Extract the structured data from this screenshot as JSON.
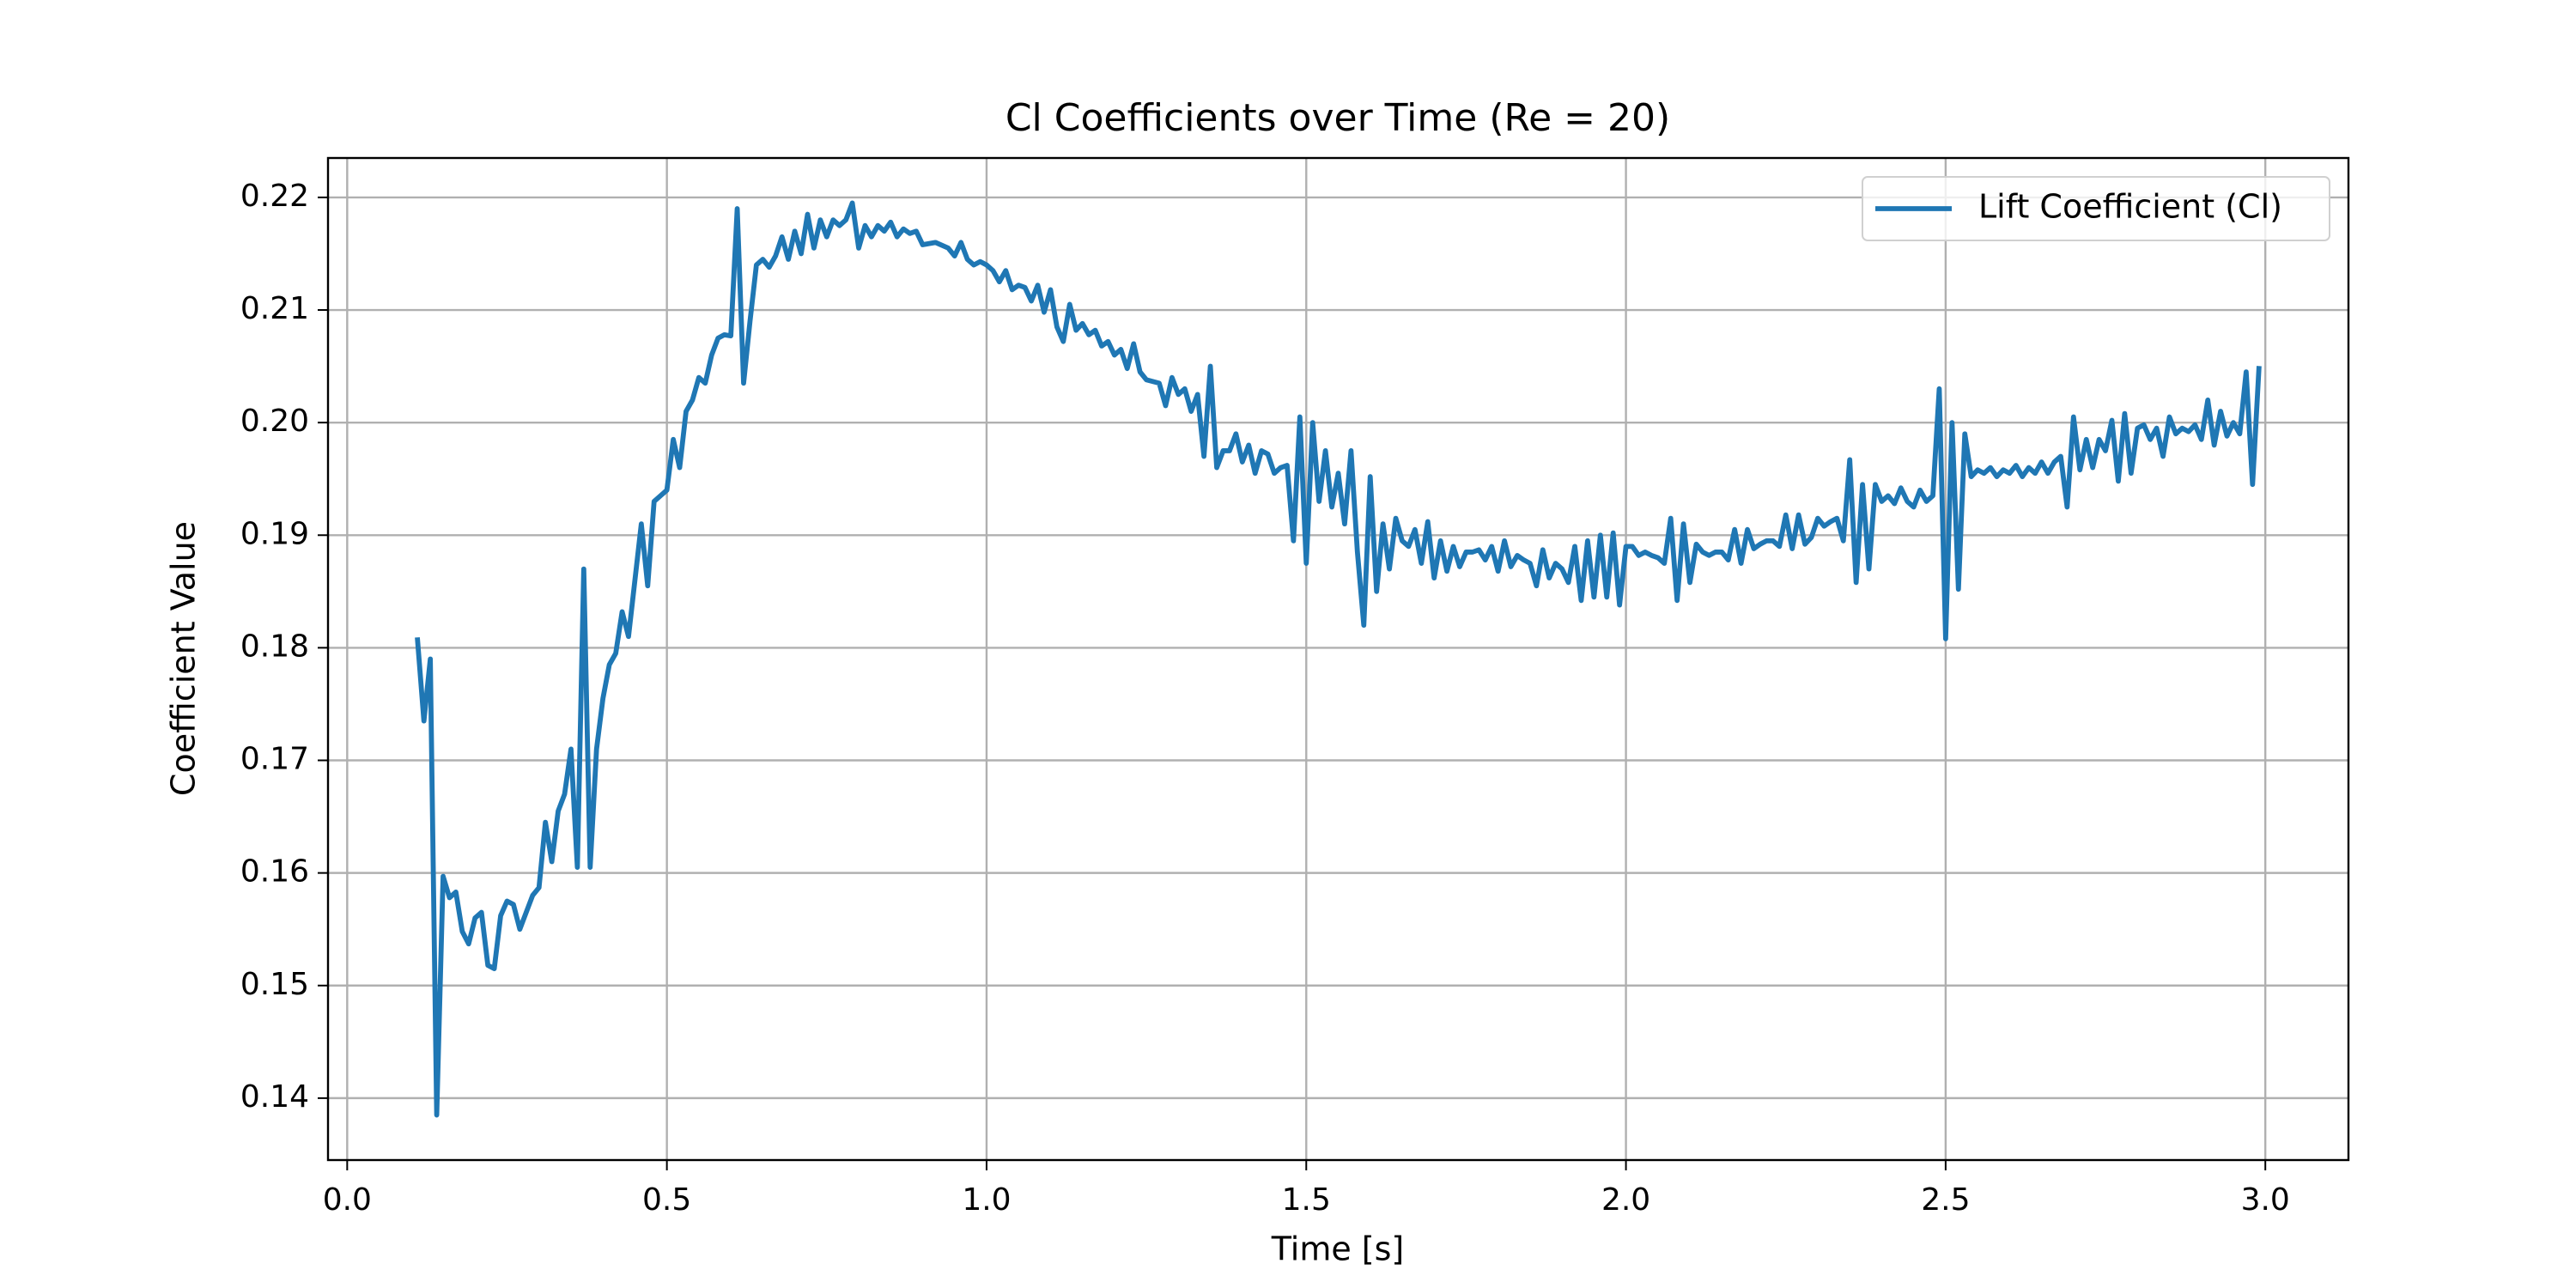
{
  "chart_data": {
    "type": "line",
    "title": "Cl Coefficients over Time (Re = 20)",
    "x_label": "Time [s]",
    "y_label": "Coefficient Value",
    "x": [
      0.11,
      0.12,
      0.13,
      0.14,
      0.15,
      0.16,
      0.17,
      0.18,
      0.19,
      0.2,
      0.21,
      0.22,
      0.23,
      0.24,
      0.25,
      0.26,
      0.27,
      0.28,
      0.29,
      0.3,
      0.31,
      0.32,
      0.33,
      0.34,
      0.35,
      0.36,
      0.37,
      0.38,
      0.39,
      0.4,
      0.41,
      0.42,
      0.43,
      0.44,
      0.45,
      0.46,
      0.47,
      0.48,
      0.49,
      0.5,
      0.51,
      0.52,
      0.53,
      0.54,
      0.55,
      0.56,
      0.57,
      0.58,
      0.59,
      0.6,
      0.61,
      0.62,
      0.63,
      0.64,
      0.65,
      0.66,
      0.67,
      0.68,
      0.69,
      0.7,
      0.71,
      0.72,
      0.73,
      0.74,
      0.75,
      0.76,
      0.77,
      0.78,
      0.79,
      0.8,
      0.81,
      0.82,
      0.83,
      0.84,
      0.85,
      0.86,
      0.87,
      0.88,
      0.89,
      0.9,
      0.92,
      0.94,
      0.95,
      0.96,
      0.97,
      0.98,
      0.99,
      1.0,
      1.01,
      1.02,
      1.03,
      1.04,
      1.05,
      1.06,
      1.07,
      1.08,
      1.09,
      1.1,
      1.11,
      1.12,
      1.13,
      1.14,
      1.15,
      1.16,
      1.17,
      1.18,
      1.19,
      1.2,
      1.21,
      1.22,
      1.23,
      1.24,
      1.25,
      1.27,
      1.28,
      1.29,
      1.3,
      1.31,
      1.32,
      1.33,
      1.34,
      1.35,
      1.36,
      1.37,
      1.38,
      1.39,
      1.4,
      1.41,
      1.42,
      1.43,
      1.44,
      1.45,
      1.46,
      1.47,
      1.48,
      1.49,
      1.5,
      1.51,
      1.52,
      1.53,
      1.54,
      1.55,
      1.56,
      1.57,
      1.58,
      1.59,
      1.6,
      1.61,
      1.62,
      1.63,
      1.64,
      1.65,
      1.66,
      1.67,
      1.68,
      1.69,
      1.7,
      1.71,
      1.72,
      1.73,
      1.74,
      1.75,
      1.76,
      1.77,
      1.78,
      1.79,
      1.8,
      1.81,
      1.82,
      1.83,
      1.84,
      1.85,
      1.86,
      1.87,
      1.88,
      1.89,
      1.9,
      1.91,
      1.92,
      1.93,
      1.94,
      1.95,
      1.96,
      1.97,
      1.98,
      1.99,
      2.0,
      2.01,
      2.02,
      2.03,
      2.04,
      2.05,
      2.06,
      2.07,
      2.08,
      2.09,
      2.1,
      2.11,
      2.12,
      2.13,
      2.14,
      2.15,
      2.16,
      2.17,
      2.18,
      2.19,
      2.2,
      2.21,
      2.22,
      2.23,
      2.24,
      2.25,
      2.26,
      2.27,
      2.28,
      2.29,
      2.3,
      2.31,
      2.32,
      2.33,
      2.34,
      2.35,
      2.36,
      2.37,
      2.38,
      2.39,
      2.4,
      2.41,
      2.42,
      2.43,
      2.44,
      2.45,
      2.46,
      2.47,
      2.48,
      2.49,
      2.5,
      2.51,
      2.52,
      2.53,
      2.54,
      2.55,
      2.56,
      2.57,
      2.58,
      2.59,
      2.6,
      2.61,
      2.62,
      2.63,
      2.64,
      2.65,
      2.66,
      2.67,
      2.68,
      2.69,
      2.7,
      2.71,
      2.72,
      2.73,
      2.74,
      2.75,
      2.76,
      2.77,
      2.78,
      2.79,
      2.8,
      2.81,
      2.82,
      2.83,
      2.84,
      2.85,
      2.86,
      2.87,
      2.88,
      2.89,
      2.9,
      2.91,
      2.92,
      2.93,
      2.94,
      2.95,
      2.96,
      2.97,
      2.98,
      2.99
    ],
    "series": [
      {
        "name": "Lift Coefficient (Cl)",
        "color": "#1f77b4",
        "values": [
          0.1807,
          0.1735,
          0.179,
          0.1385,
          0.1597,
          0.1578,
          0.1583,
          0.1548,
          0.1537,
          0.156,
          0.1565,
          0.1518,
          0.1515,
          0.1562,
          0.1575,
          0.1572,
          0.155,
          0.1565,
          0.158,
          0.1587,
          0.1645,
          0.161,
          0.1655,
          0.167,
          0.171,
          0.1605,
          0.187,
          0.1605,
          0.171,
          0.1755,
          0.1785,
          0.1795,
          0.1832,
          0.181,
          0.186,
          0.191,
          0.1855,
          0.193,
          0.1935,
          0.194,
          0.1985,
          0.196,
          0.201,
          0.202,
          0.204,
          0.2035,
          0.206,
          0.2075,
          0.2078,
          0.2077,
          0.219,
          0.2035,
          0.209,
          0.214,
          0.2145,
          0.2138,
          0.2148,
          0.2165,
          0.2145,
          0.217,
          0.215,
          0.2185,
          0.2155,
          0.218,
          0.2165,
          0.218,
          0.2175,
          0.218,
          0.2195,
          0.2155,
          0.2175,
          0.2165,
          0.2175,
          0.217,
          0.2178,
          0.2165,
          0.2172,
          0.2168,
          0.217,
          0.2158,
          0.216,
          0.2155,
          0.2148,
          0.216,
          0.2145,
          0.214,
          0.2143,
          0.214,
          0.2135,
          0.2125,
          0.2135,
          0.2118,
          0.2122,
          0.212,
          0.2108,
          0.2122,
          0.2098,
          0.2118,
          0.2085,
          0.2072,
          0.2105,
          0.2082,
          0.2088,
          0.2078,
          0.2082,
          0.2068,
          0.2072,
          0.206,
          0.2065,
          0.2048,
          0.207,
          0.2045,
          0.2038,
          0.2035,
          0.2015,
          0.204,
          0.2025,
          0.203,
          0.201,
          0.2025,
          0.197,
          0.205,
          0.196,
          0.1975,
          0.1975,
          0.199,
          0.1965,
          0.198,
          0.1955,
          0.1975,
          0.1972,
          0.1955,
          0.196,
          0.1962,
          0.1895,
          0.2005,
          0.1875,
          0.2,
          0.193,
          0.1975,
          0.1925,
          0.1955,
          0.191,
          0.1975,
          0.1885,
          0.182,
          0.1952,
          0.185,
          0.191,
          0.187,
          0.1915,
          0.1895,
          0.189,
          0.1905,
          0.1875,
          0.1912,
          0.1862,
          0.1895,
          0.1868,
          0.189,
          0.1872,
          0.1885,
          0.1885,
          0.1887,
          0.1878,
          0.189,
          0.1868,
          0.1895,
          0.1872,
          0.1882,
          0.1878,
          0.1875,
          0.1855,
          0.1887,
          0.1862,
          0.1875,
          0.187,
          0.1858,
          0.189,
          0.1842,
          0.1895,
          0.1845,
          0.19,
          0.1845,
          0.1902,
          0.1838,
          0.189,
          0.189,
          0.1882,
          0.1885,
          0.1882,
          0.188,
          0.1875,
          0.1915,
          0.1842,
          0.191,
          0.1858,
          0.1892,
          0.1885,
          0.1882,
          0.1885,
          0.1885,
          0.1878,
          0.1905,
          0.1875,
          0.1905,
          0.1888,
          0.1892,
          0.1895,
          0.1895,
          0.189,
          0.1918,
          0.1888,
          0.1918,
          0.1892,
          0.1898,
          0.1915,
          0.1908,
          0.1912,
          0.1915,
          0.1895,
          0.1967,
          0.1858,
          0.1945,
          0.187,
          0.1945,
          0.193,
          0.1935,
          0.1928,
          0.1942,
          0.193,
          0.1925,
          0.194,
          0.193,
          0.1935,
          0.203,
          0.1808,
          0.2,
          0.1852,
          0.199,
          0.1952,
          0.1958,
          0.1955,
          0.196,
          0.1952,
          0.1958,
          0.1955,
          0.1962,
          0.1952,
          0.196,
          0.1955,
          0.1965,
          0.1955,
          0.1965,
          0.197,
          0.1925,
          0.2005,
          0.1958,
          0.1985,
          0.196,
          0.1985,
          0.1975,
          0.2002,
          0.1948,
          0.2008,
          0.1955,
          0.1995,
          0.1998,
          0.1985,
          0.1995,
          0.197,
          0.2005,
          0.199,
          0.1995,
          0.1992,
          0.1998,
          0.1985,
          0.202,
          0.198,
          0.201,
          0.1988,
          0.2,
          0.199,
          0.2045,
          0.1945,
          0.2048
        ]
      }
    ],
    "xlim": [
      -0.03,
      3.13
    ],
    "ylim": [
      0.1345,
      0.2235
    ],
    "xticks": [
      {
        "value": 0,
        "label": "0.0"
      },
      0.5,
      {
        "value": 1,
        "label": "1.0"
      },
      1.5,
      {
        "value": 2,
        "label": "2.0"
      },
      2.5,
      {
        "value": 3,
        "label": "3.0"
      }
    ],
    "yticks": [
      0.14,
      0.15,
      0.16,
      0.17,
      0.18,
      0.19,
      {
        "value": 0.2,
        "label": "0.20"
      },
      0.21,
      0.22
    ],
    "grid": true,
    "legend": "upper right"
  }
}
